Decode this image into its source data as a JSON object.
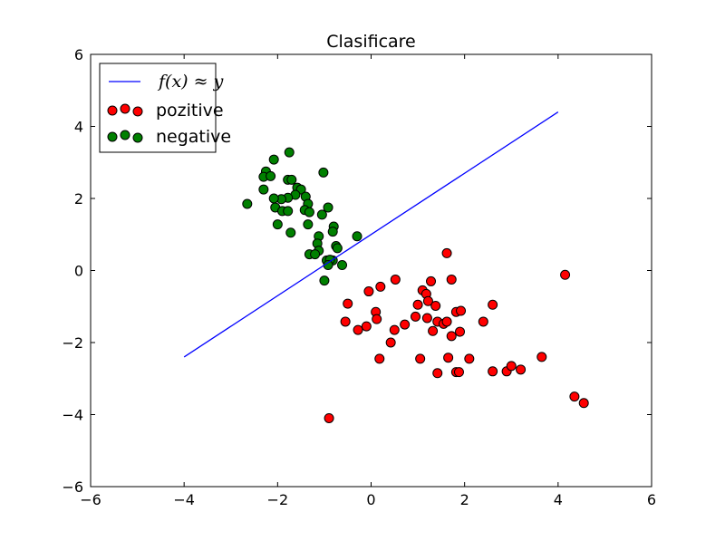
{
  "chart_data": {
    "type": "scatter",
    "title": "Clasificare",
    "xlabel": "",
    "ylabel": "",
    "xlim": [
      -6,
      6
    ],
    "ylim": [
      -6,
      6
    ],
    "xticks": [
      -6,
      -4,
      -2,
      0,
      2,
      4,
      6
    ],
    "yticks": [
      -6,
      -4,
      -2,
      0,
      2,
      4,
      6
    ],
    "tick_labels_x": [
      "−6",
      "−4",
      "−2",
      "0",
      "2",
      "4",
      "6"
    ],
    "tick_labels_y": [
      "−6",
      "−4",
      "−2",
      "0",
      "2",
      "4",
      "6"
    ],
    "grid": false,
    "legend_position": "top-left",
    "line": {
      "name": "f(x) ≈ y",
      "color": "#0000ff",
      "x": [
        -4,
        4
      ],
      "y": [
        -2.4,
        4.4
      ]
    },
    "series": [
      {
        "name": "pozitive",
        "color": "#ff0000",
        "points": [
          [
            1.62,
            0.48
          ],
          [
            4.15,
            -0.12
          ],
          [
            -0.05,
            -0.58
          ],
          [
            0.52,
            -0.25
          ],
          [
            1.28,
            -0.3
          ],
          [
            1.72,
            -0.25
          ],
          [
            1.1,
            -0.55
          ],
          [
            1.18,
            -0.65
          ],
          [
            0.2,
            -0.45
          ],
          [
            2.6,
            -0.95
          ],
          [
            -0.5,
            -0.92
          ],
          [
            1.0,
            -0.95
          ],
          [
            1.22,
            -0.85
          ],
          [
            1.38,
            -0.98
          ],
          [
            0.1,
            -1.15
          ],
          [
            -0.55,
            -1.42
          ],
          [
            -0.1,
            -1.55
          ],
          [
            -0.28,
            -1.65
          ],
          [
            0.12,
            -1.35
          ],
          [
            0.72,
            -1.5
          ],
          [
            0.95,
            -1.28
          ],
          [
            1.2,
            -1.32
          ],
          [
            1.42,
            -1.42
          ],
          [
            1.55,
            -1.48
          ],
          [
            1.62,
            -1.42
          ],
          [
            1.82,
            -1.15
          ],
          [
            1.92,
            -1.12
          ],
          [
            2.4,
            -1.42
          ],
          [
            0.5,
            -1.65
          ],
          [
            0.42,
            -2.0
          ],
          [
            1.32,
            -1.68
          ],
          [
            1.72,
            -1.82
          ],
          [
            1.9,
            -1.7
          ],
          [
            0.18,
            -2.45
          ],
          [
            1.05,
            -2.45
          ],
          [
            1.42,
            -2.85
          ],
          [
            1.65,
            -2.42
          ],
          [
            1.82,
            -2.82
          ],
          [
            1.88,
            -2.82
          ],
          [
            2.1,
            -2.45
          ],
          [
            2.6,
            -2.8
          ],
          [
            2.9,
            -2.8
          ],
          [
            3.0,
            -2.65
          ],
          [
            3.2,
            -2.75
          ],
          [
            3.65,
            -2.4
          ],
          [
            4.35,
            -3.5
          ],
          [
            4.55,
            -3.68
          ],
          [
            -0.9,
            -4.1
          ]
        ]
      },
      {
        "name": "negative",
        "color": "#008000",
        "points": [
          [
            -1.75,
            3.28
          ],
          [
            -2.08,
            3.08
          ],
          [
            -2.25,
            2.75
          ],
          [
            -2.3,
            2.6
          ],
          [
            -2.15,
            2.62
          ],
          [
            -1.02,
            2.72
          ],
          [
            -1.78,
            2.52
          ],
          [
            -1.7,
            2.52
          ],
          [
            -2.3,
            2.25
          ],
          [
            -1.58,
            2.3
          ],
          [
            -1.5,
            2.25
          ],
          [
            -1.62,
            2.1
          ],
          [
            -1.78,
            2.02
          ],
          [
            -1.92,
            1.98
          ],
          [
            -2.08,
            2.0
          ],
          [
            -1.4,
            2.05
          ],
          [
            -1.35,
            1.85
          ],
          [
            -2.65,
            1.85
          ],
          [
            -2.05,
            1.75
          ],
          [
            -1.9,
            1.65
          ],
          [
            -1.78,
            1.65
          ],
          [
            -1.42,
            1.68
          ],
          [
            -1.32,
            1.62
          ],
          [
            -1.05,
            1.55
          ],
          [
            -0.92,
            1.75
          ],
          [
            -1.35,
            1.28
          ],
          [
            -2.0,
            1.28
          ],
          [
            -1.72,
            1.05
          ],
          [
            -0.8,
            1.22
          ],
          [
            -0.82,
            1.08
          ],
          [
            -1.12,
            0.95
          ],
          [
            -0.3,
            0.95
          ],
          [
            -1.15,
            0.75
          ],
          [
            -0.75,
            0.68
          ],
          [
            -0.72,
            0.62
          ],
          [
            -1.12,
            0.55
          ],
          [
            -1.32,
            0.45
          ],
          [
            -1.2,
            0.45
          ],
          [
            -0.95,
            0.28
          ],
          [
            -0.82,
            0.28
          ],
          [
            -0.88,
            0.3
          ],
          [
            -0.62,
            0.15
          ],
          [
            -0.92,
            0.15
          ],
          [
            -1.0,
            -0.28
          ]
        ]
      }
    ]
  }
}
